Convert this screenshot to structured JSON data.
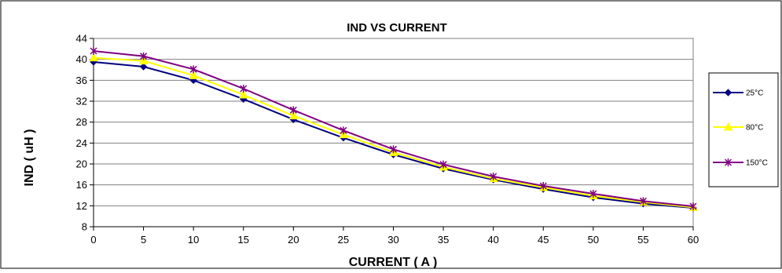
{
  "chart_data": {
    "type": "line",
    "title": "IND VS CURRENT",
    "xlabel": "CURRENT ( A )",
    "ylabel": "IND ( uH )",
    "x": [
      0,
      5,
      10,
      15,
      20,
      25,
      30,
      35,
      40,
      45,
      50,
      55,
      60
    ],
    "xlim": [
      0,
      60
    ],
    "ylim": [
      8,
      44
    ],
    "xticks": [
      0,
      5,
      10,
      15,
      20,
      25,
      30,
      35,
      40,
      45,
      50,
      55,
      60
    ],
    "yticks": [
      8,
      12,
      16,
      20,
      24,
      28,
      32,
      36,
      40,
      44
    ],
    "grid": "horizontal",
    "legend_position": "right",
    "series": [
      {
        "name": "25°C",
        "color": "#000080",
        "marker": "diamond",
        "values": [
          39.5,
          38.6,
          36.0,
          32.4,
          28.5,
          25.0,
          21.8,
          19.1,
          17.0,
          15.2,
          13.6,
          12.4,
          11.6
        ]
      },
      {
        "name": "80°C",
        "color": "#ffff00",
        "marker": "triangle",
        "values": [
          40.3,
          39.7,
          36.9,
          33.2,
          29.2,
          25.6,
          22.2,
          19.4,
          17.2,
          15.5,
          13.9,
          12.7,
          11.7
        ]
      },
      {
        "name": "150°C",
        "color": "#800080",
        "marker": "star",
        "values": [
          41.6,
          40.6,
          38.1,
          34.4,
          30.3,
          26.4,
          22.8,
          19.9,
          17.6,
          15.8,
          14.3,
          12.9,
          11.9
        ]
      }
    ]
  }
}
